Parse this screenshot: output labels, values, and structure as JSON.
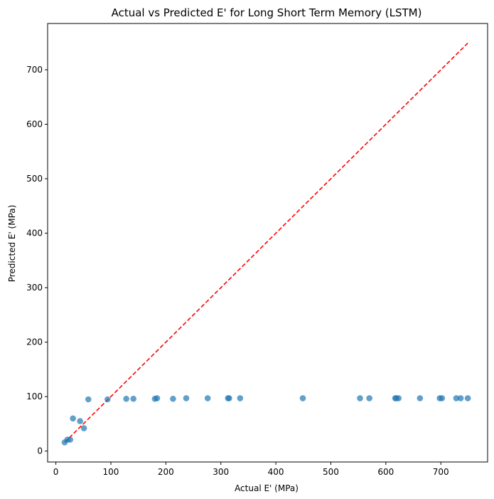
{
  "chart_data": {
    "type": "scatter",
    "title": "Actual vs Predicted E' for Long Short Term Memory (LSTM)",
    "xlabel": "Actual E' (MPa)",
    "ylabel": "Predicted E' (MPa)",
    "xlim": [
      -15,
      785
    ],
    "ylim": [
      -20,
      785
    ],
    "xticks": [
      "0",
      "100",
      "200",
      "300",
      "400",
      "500",
      "600",
      "700"
    ],
    "yticks": [
      "0",
      "100",
      "200",
      "300",
      "400",
      "500",
      "600",
      "700"
    ],
    "grid": false,
    "legend": "none",
    "series": [
      {
        "color": "#1f77b4",
        "points": [
          [
            16,
            16
          ],
          [
            21,
            21
          ],
          [
            26,
            21
          ],
          [
            31,
            60
          ],
          [
            44,
            55
          ],
          [
            51,
            42
          ],
          [
            59,
            95
          ],
          [
            94,
            95
          ],
          [
            128,
            96
          ],
          [
            141,
            96
          ],
          [
            180,
            96
          ],
          [
            184,
            97
          ],
          [
            213,
            96
          ],
          [
            237,
            97
          ],
          [
            276,
            97
          ],
          [
            313,
            97
          ],
          [
            315,
            97
          ],
          [
            335,
            97
          ],
          [
            449,
            97
          ],
          [
            553,
            97
          ],
          [
            570,
            97
          ],
          [
            617,
            97
          ],
          [
            619,
            97
          ],
          [
            623,
            97
          ],
          [
            662,
            97
          ],
          [
            698,
            97
          ],
          [
            702,
            97
          ],
          [
            728,
            97
          ],
          [
            736,
            97
          ],
          [
            749,
            97
          ]
        ]
      }
    ],
    "reference_line": {
      "color": "#ff0000",
      "style": "dashed",
      "from": [
        16,
        16
      ],
      "to": [
        749,
        749
      ]
    }
  }
}
